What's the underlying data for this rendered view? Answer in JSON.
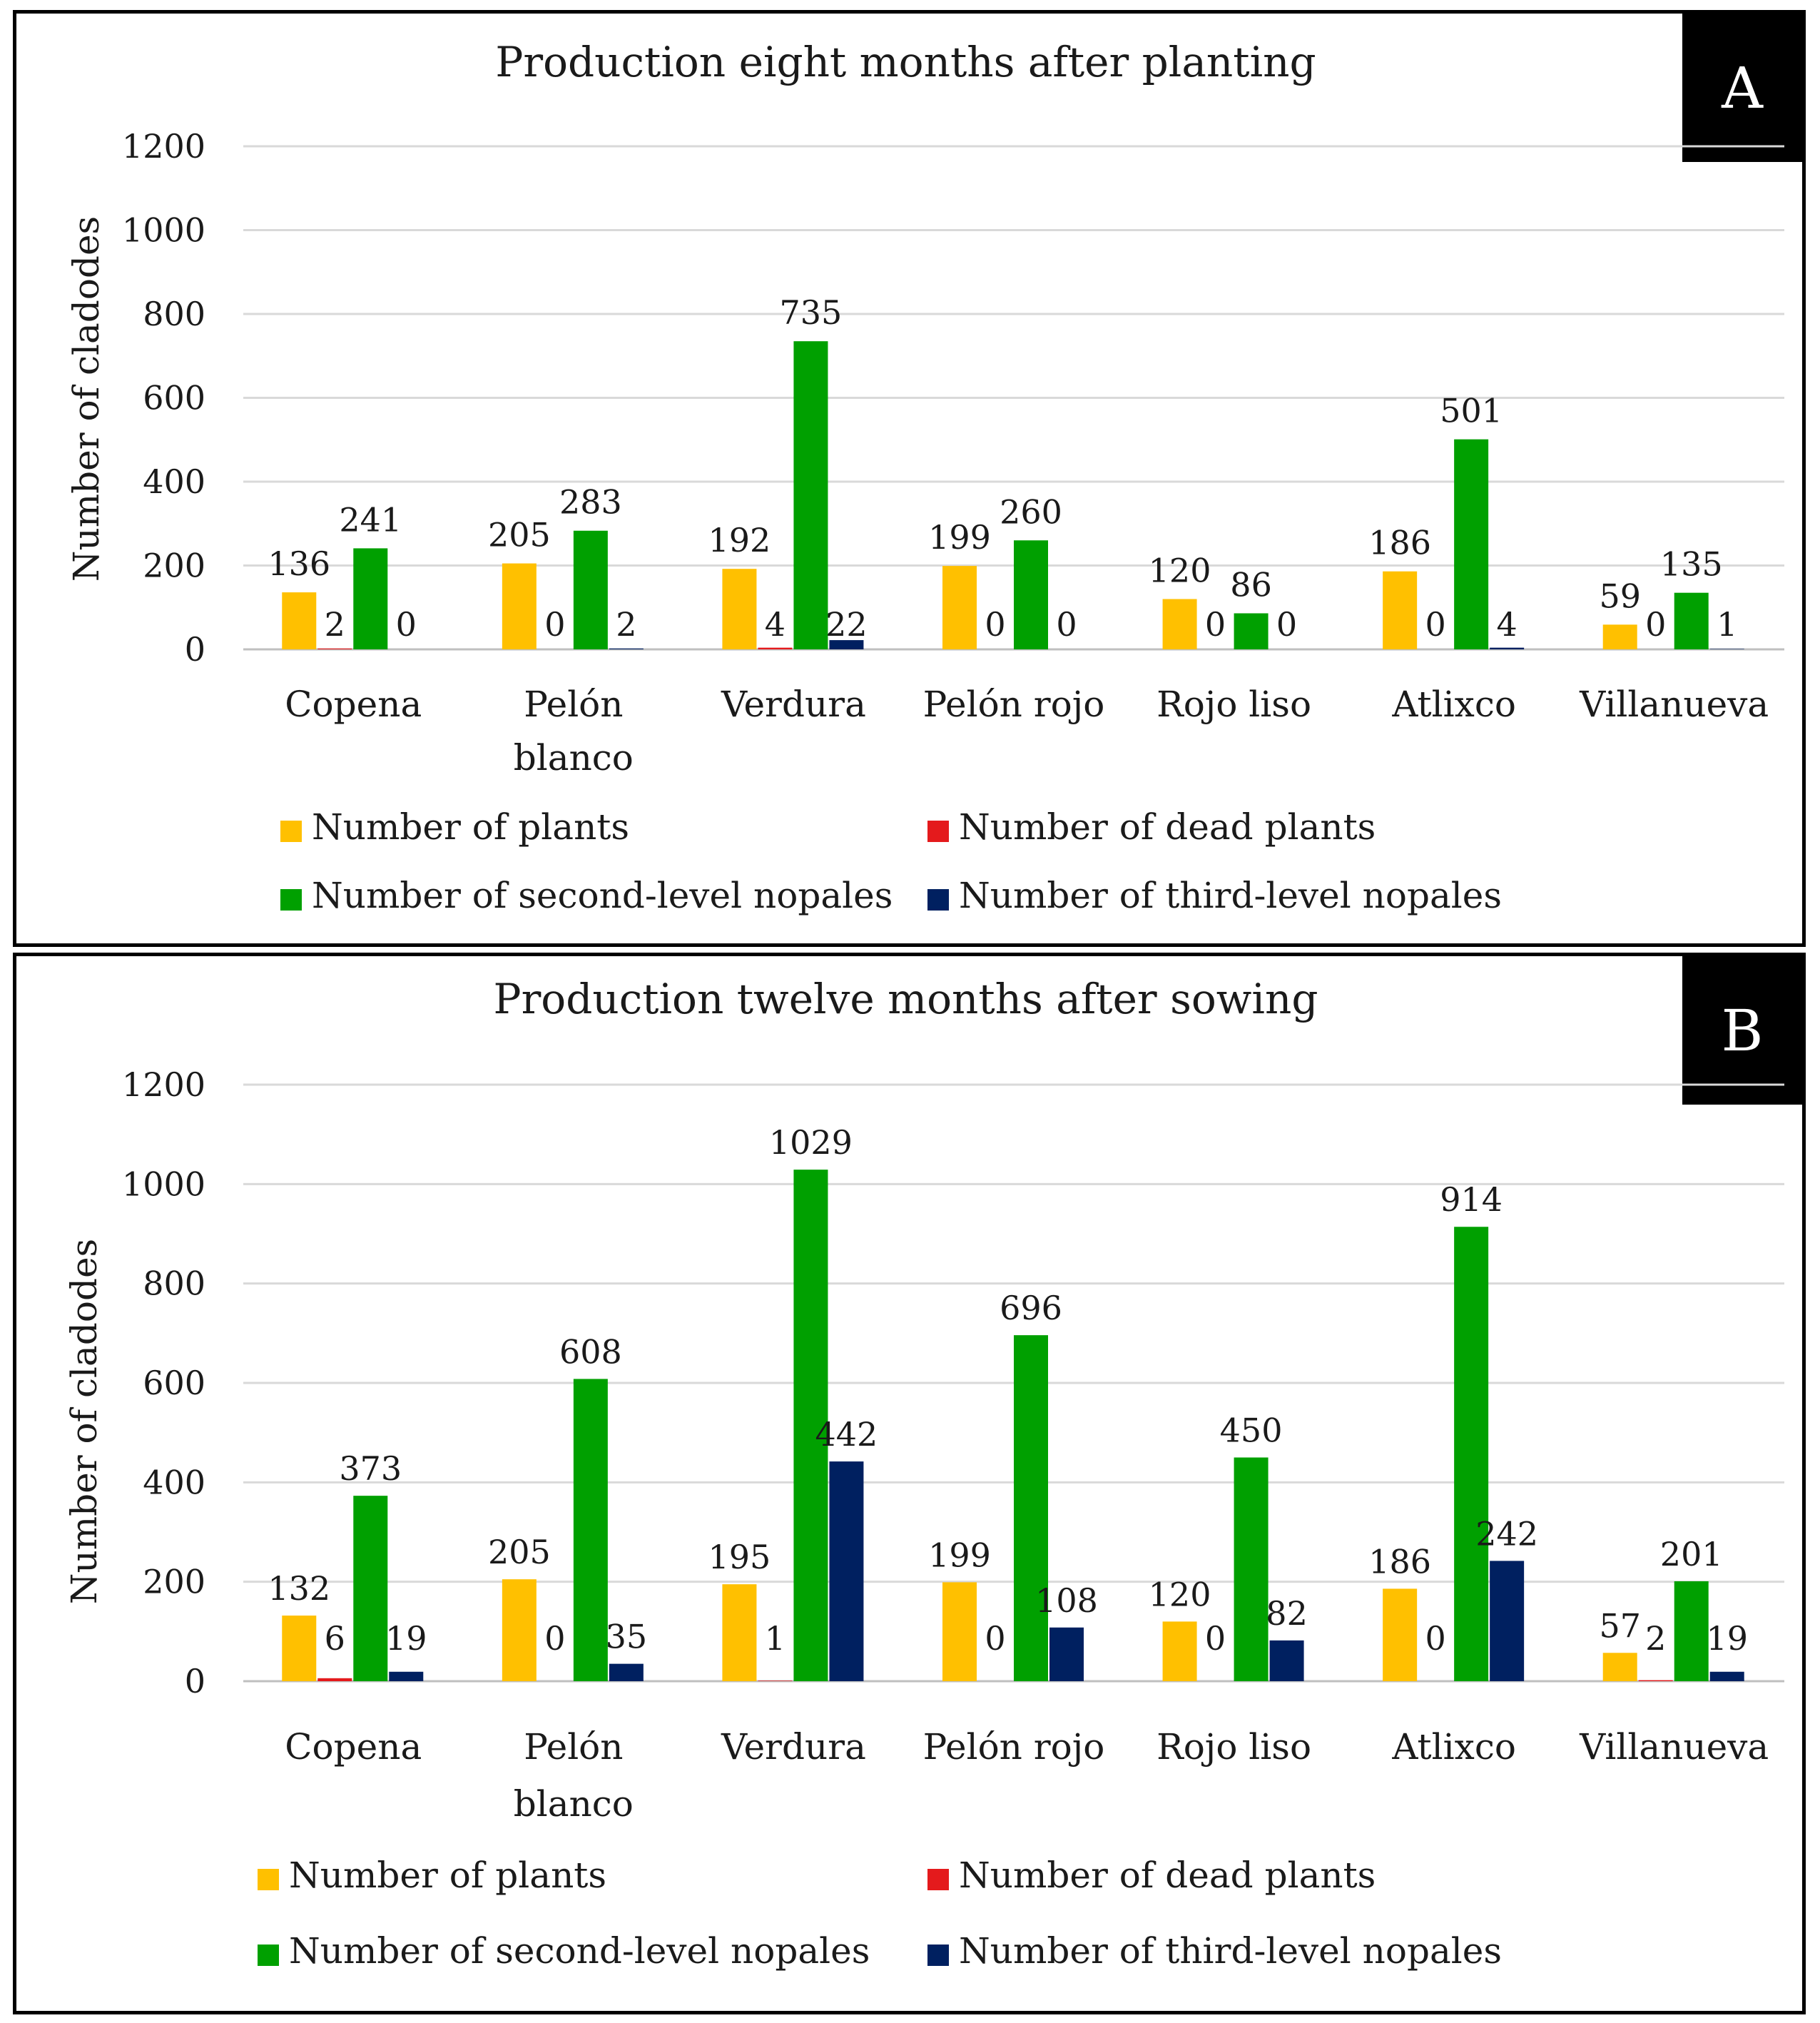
{
  "colors": {
    "plants": "#FFC000",
    "dead": "#E41A1C",
    "second": "#00A000",
    "third": "#002060",
    "badge_bg": "#000000"
  },
  "legend": [
    "Number of plants",
    "Number of dead plants",
    "Number of second-level nopales",
    "Number of third-level nopales"
  ],
  "chart_data": [
    {
      "type": "bar",
      "panel": "A",
      "title": "Production eight months after planting",
      "ylabel": "Number of cladodes",
      "xlabel": "",
      "ylim": [
        0,
        1200
      ],
      "yticks": [
        0,
        200,
        400,
        600,
        800,
        1000,
        1200
      ],
      "categories": [
        [
          "Copena"
        ],
        [
          "Pelón",
          "blanco"
        ],
        [
          "Verdura"
        ],
        [
          "Pelón rojo"
        ],
        [
          "Rojo liso"
        ],
        [
          "Atlixco"
        ],
        [
          "Villanueva"
        ]
      ],
      "series": [
        {
          "name": "Number of plants",
          "values": [
            136,
            205,
            192,
            199,
            120,
            186,
            59
          ],
          "labels": [
            "136",
            "205",
            "192",
            "199",
            "120",
            "186",
            "59"
          ]
        },
        {
          "name": "Number of dead plants",
          "values": [
            2,
            0,
            4,
            0,
            0,
            0,
            0
          ],
          "labels": [
            "2",
            "0",
            "4",
            "0",
            "0",
            "0",
            "0"
          ]
        },
        {
          "name": "Number of second-level nopales",
          "values": [
            241,
            283,
            735,
            260,
            86,
            501,
            135
          ],
          "labels": [
            "241",
            "283",
            "735",
            "260",
            "86",
            "501",
            "135"
          ]
        },
        {
          "name": "Number of third-level nopales",
          "values": [
            0,
            2,
            22,
            0,
            0,
            4,
            1
          ],
          "labels": [
            "0",
            "2",
            "22",
            "0",
            "0",
            "4",
            "1"
          ]
        }
      ]
    },
    {
      "type": "bar",
      "panel": "B",
      "title": "Production twelve months after sowing",
      "ylabel": "Number of cladodes",
      "xlabel": "",
      "ylim": [
        0,
        1200
      ],
      "yticks": [
        0,
        200,
        400,
        600,
        800,
        1000,
        1200
      ],
      "categories": [
        [
          "Copena"
        ],
        [
          "Pelón",
          "blanco"
        ],
        [
          "Verdura"
        ],
        [
          "Pelón rojo"
        ],
        [
          "Rojo liso"
        ],
        [
          "Atlixco"
        ],
        [
          "Villanueva"
        ]
      ],
      "series": [
        {
          "name": "Number of plants",
          "values": [
            132,
            205,
            195,
            199,
            120,
            186,
            57
          ],
          "labels": [
            "132",
            "205",
            "195",
            "199",
            "120",
            "186",
            "57"
          ]
        },
        {
          "name": "Number of dead plants",
          "values": [
            6,
            0,
            1,
            0,
            0,
            0,
            2
          ],
          "labels": [
            "6",
            "0",
            "1",
            "0",
            "0",
            "0",
            "2"
          ]
        },
        {
          "name": "Number of second-level nopales",
          "values": [
            373,
            608,
            1029,
            696,
            450,
            914,
            201
          ],
          "labels": [
            "373",
            "608",
            "1029",
            "696",
            "450",
            "914",
            "201"
          ]
        },
        {
          "name": "Number of third-level nopales",
          "values": [
            19,
            35,
            442,
            108,
            82,
            242,
            19
          ],
          "labels": [
            "19",
            "35",
            "442",
            "108",
            "82",
            "242",
            "19"
          ]
        }
      ]
    }
  ]
}
